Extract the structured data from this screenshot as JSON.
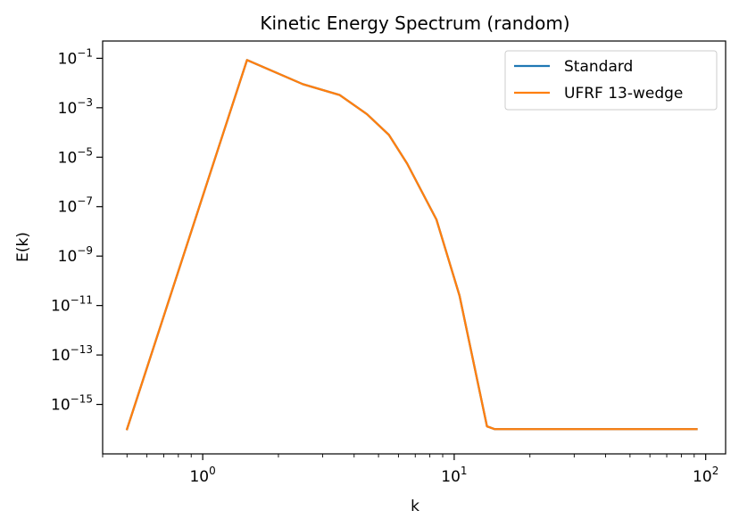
{
  "chart_data": {
    "type": "line",
    "title": "Kinetic Energy Spectrum (random)",
    "xlabel": "k",
    "ylabel": "E(k)",
    "xscale": "log",
    "yscale": "log",
    "xlim": [
      0.4,
      120
    ],
    "ylim": [
      1e-17,
      0.5
    ],
    "x_ticks": [
      {
        "value": 1,
        "base": "10",
        "exp": "0"
      },
      {
        "value": 10,
        "base": "10",
        "exp": "1"
      },
      {
        "value": 100,
        "base": "10",
        "exp": "2"
      }
    ],
    "y_ticks": [
      {
        "value": 0.1,
        "base": "10",
        "exp": "−1"
      },
      {
        "value": 0.001,
        "base": "10",
        "exp": "−3"
      },
      {
        "value": 1e-05,
        "base": "10",
        "exp": "−5"
      },
      {
        "value": 1e-07,
        "base": "10",
        "exp": "−7"
      },
      {
        "value": 1e-09,
        "base": "10",
        "exp": "−9"
      },
      {
        "value": 1e-11,
        "base": "10",
        "exp": "−11"
      },
      {
        "value": 1e-13,
        "base": "10",
        "exp": "−13"
      },
      {
        "value": 1e-15,
        "base": "10",
        "exp": "−15"
      }
    ],
    "grid": false,
    "legend_position": "top-right",
    "series": [
      {
        "name": "Standard",
        "color": "#1f77b4",
        "x": [
          0.5,
          1.5,
          2.5,
          3.5,
          4.5,
          5.5,
          6.5,
          8.5,
          10.5,
          13.5,
          14.5,
          20,
          30,
          50,
          92
        ],
        "y": [
          1e-16,
          0.085,
          0.009,
          0.0033,
          0.00055,
          8e-05,
          5.5e-06,
          3e-08,
          2.5e-11,
          1.3e-16,
          1e-16,
          1e-16,
          1e-16,
          1e-16,
          1e-16
        ]
      },
      {
        "name": "UFRF 13-wedge",
        "color": "#ff7f0e",
        "x": [
          0.5,
          1.5,
          2.5,
          3.5,
          4.5,
          5.5,
          6.5,
          8.5,
          10.5,
          13.5,
          14.5,
          20,
          30,
          50,
          92
        ],
        "y": [
          1e-16,
          0.085,
          0.009,
          0.0033,
          0.00055,
          8e-05,
          5.5e-06,
          3e-08,
          2.5e-11,
          1.3e-16,
          1e-16,
          1e-16,
          1e-16,
          1e-16,
          1e-16
        ]
      }
    ]
  }
}
